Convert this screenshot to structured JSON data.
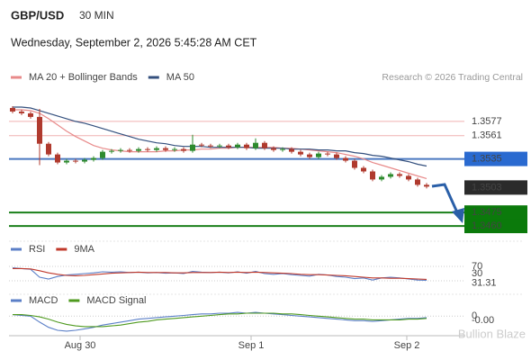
{
  "chart_data": [
    {
      "type": "candlestick",
      "title": "GBP/USD",
      "subtitle": "30 MIN",
      "date": "Wednesday, September 2, 2026 5:45:28 AM CET",
      "source": "Research © 2026 Trading Central",
      "watermark": "Bullion Blaze",
      "up_color": "#2e8b2e",
      "down_color": "#b03a2e",
      "xlim": [
        -0.2,
        46.6
      ],
      "ylim": [
        1.3449,
        1.3597
      ],
      "xticks": [
        {
          "value": 7.5,
          "label": "Aug 30"
        },
        {
          "value": 26.5,
          "label": "Sep 1"
        },
        {
          "value": 43.8,
          "label": "Sep 2"
        }
      ],
      "open": [
        1.3592,
        1.3588,
        1.3586,
        1.3582,
        1.3552,
        1.354,
        1.3531,
        1.3533,
        1.3532,
        1.3534,
        1.3536,
        1.3543,
        1.3544,
        1.3545,
        1.3544,
        1.3546,
        1.3545,
        1.3547,
        1.3545,
        1.3546,
        1.3544,
        1.3551,
        1.355,
        1.3549,
        1.355,
        1.3548,
        1.3551,
        1.3547,
        1.3553,
        1.3547,
        1.3545,
        1.3546,
        1.3543,
        1.354,
        1.3537,
        1.3541,
        1.354,
        1.3536,
        1.3533,
        1.3525,
        1.3521,
        1.3512,
        1.3515,
        1.3518,
        1.3516,
        1.3512,
        1.3506
      ],
      "high": [
        1.3594,
        1.359,
        1.3588,
        1.3591,
        1.3554,
        1.3542,
        1.3535,
        1.3535,
        1.3536,
        1.3538,
        1.3545,
        1.3546,
        1.3547,
        1.3547,
        1.3548,
        1.3548,
        1.3549,
        1.3549,
        1.3548,
        1.3548,
        1.3562,
        1.3553,
        1.3552,
        1.3552,
        1.3552,
        1.3553,
        1.3553,
        1.3558,
        1.3555,
        1.3549,
        1.3548,
        1.3548,
        1.3545,
        1.3542,
        1.3543,
        1.3543,
        1.3542,
        1.3538,
        1.3535,
        1.3527,
        1.3523,
        1.3517,
        1.352,
        1.352,
        1.3518,
        1.3514,
        1.3508
      ],
      "low": [
        1.3586,
        1.3584,
        1.358,
        1.3528,
        1.3538,
        1.3529,
        1.3529,
        1.353,
        1.353,
        1.3532,
        1.3534,
        1.3541,
        1.3542,
        1.3542,
        1.3542,
        1.3543,
        1.3543,
        1.3543,
        1.3543,
        1.3542,
        1.3542,
        1.3548,
        1.3547,
        1.3547,
        1.3546,
        1.3546,
        1.3545,
        1.3545,
        1.3545,
        1.3543,
        1.3543,
        1.3541,
        1.3538,
        1.3535,
        1.3535,
        1.3538,
        1.3534,
        1.3531,
        1.3523,
        1.3519,
        1.351,
        1.351,
        1.3513,
        1.3514,
        1.351,
        1.3504,
        1.3502
      ],
      "close": [
        1.3588,
        1.3586,
        1.3582,
        1.3552,
        1.354,
        1.3531,
        1.3533,
        1.3532,
        1.3534,
        1.3536,
        1.3543,
        1.3544,
        1.3545,
        1.3544,
        1.3546,
        1.3545,
        1.3547,
        1.3545,
        1.3546,
        1.3544,
        1.3551,
        1.355,
        1.3549,
        1.355,
        1.3548,
        1.3551,
        1.3547,
        1.3553,
        1.3547,
        1.3545,
        1.3546,
        1.3543,
        1.354,
        1.3537,
        1.3541,
        1.354,
        1.3536,
        1.3533,
        1.3525,
        1.3521,
        1.3512,
        1.3515,
        1.3518,
        1.3516,
        1.3512,
        1.3506,
        1.3504
      ],
      "lines": [
        {
          "name": "MA 20 + Bollinger Bands",
          "color": "#e88a8a",
          "values": [
            1.359,
            1.359,
            1.3589,
            1.3586,
            1.358,
            1.3573,
            1.3566,
            1.356,
            1.3555,
            1.355,
            1.3547,
            1.3545,
            1.3544,
            1.3543,
            1.3543,
            1.3543,
            1.3543,
            1.3544,
            1.3544,
            1.3545,
            1.3545,
            1.3546,
            1.3546,
            1.3547,
            1.3547,
            1.3548,
            1.3548,
            1.3548,
            1.3548,
            1.3548,
            1.3547,
            1.3547,
            1.3546,
            1.3545,
            1.3544,
            1.3543,
            1.3542,
            1.354,
            1.3538,
            1.3535,
            1.3531,
            1.3528,
            1.3525,
            1.3522,
            1.3519,
            1.3516,
            1.3513
          ]
        },
        {
          "name": "MA 50",
          "color": "#34507e",
          "values": [
            1.3593,
            1.3593,
            1.3592,
            1.3589,
            1.3586,
            1.3583,
            1.358,
            1.3577,
            1.3575,
            1.3572,
            1.3569,
            1.3566,
            1.3563,
            1.356,
            1.3557,
            1.3555,
            1.3553,
            1.3552,
            1.355,
            1.3549,
            1.3549,
            1.3549,
            1.3548,
            1.3548,
            1.3548,
            1.3548,
            1.3548,
            1.3547,
            1.3547,
            1.3547,
            1.3547,
            1.3546,
            1.3546,
            1.3546,
            1.3545,
            1.3545,
            1.3544,
            1.3544,
            1.3542,
            1.3541,
            1.3539,
            1.3538,
            1.3536,
            1.3534,
            1.3532,
            1.3529,
            1.3527
          ]
        }
      ],
      "levels": [
        {
          "value": 1.3577,
          "label": "1.3577",
          "color": "#f0b0b0",
          "text_color": "#d9302c"
        },
        {
          "value": 1.3561,
          "label": "1.3561",
          "color": "#f0b0b0",
          "text_color": "#d9302c"
        },
        {
          "value": 1.3535,
          "label": "1.3535",
          "color": "#4a78c0",
          "box_color": "#2a6ad0",
          "text_color": "#ffffff"
        },
        {
          "value": 1.3503,
          "label": "1.3503",
          "box_color": "#2b2b2b",
          "text_color": "#ffffff"
        },
        {
          "value": 1.3475,
          "label": "1.3475",
          "color": "#1a7f1a",
          "box_color": "#0b7a0b",
          "text_color": "#ffffff"
        },
        {
          "value": 1.346,
          "label": "1.3460",
          "color": "#1a7f1a",
          "box_color": "#0b7a0b",
          "text_color": "#ffffff"
        }
      ]
    },
    {
      "type": "line",
      "xlim": [
        -0.2,
        46.6
      ],
      "ylim": [
        0,
        100
      ],
      "yticks": [
        70,
        30
      ],
      "series": [
        {
          "name": "RSI",
          "color": "#5b7fc7",
          "values": [
            66,
            64,
            62,
            40,
            35,
            42,
            46,
            48,
            50,
            52,
            55,
            54,
            55,
            53,
            54,
            52,
            53,
            51,
            52,
            50,
            56,
            54,
            53,
            54,
            52,
            55,
            51,
            56,
            50,
            48,
            50,
            47,
            45,
            43,
            48,
            46,
            42,
            40,
            36,
            38,
            32,
            38,
            40,
            38,
            35,
            32,
            31.31
          ]
        },
        {
          "name": "9MA",
          "color": "#c0392b",
          "values": [
            64,
            64,
            63,
            58,
            52,
            48,
            45,
            44,
            45,
            47,
            49,
            51,
            52,
            53,
            54,
            53,
            53,
            53,
            52,
            52,
            53,
            53,
            53,
            54,
            53,
            54,
            53,
            54,
            53,
            52,
            51,
            50,
            48,
            47,
            47,
            46,
            45,
            44,
            42,
            40,
            38,
            38,
            37,
            37,
            36,
            35,
            34
          ]
        }
      ]
    },
    {
      "type": "line",
      "xlim": [
        -0.2,
        46.6
      ],
      "ylim": [
        -0.0025,
        0.001
      ],
      "yticks": [
        0
      ],
      "series": [
        {
          "name": "MACD",
          "color": "#5b7fc7",
          "values": [
            0.0002,
            0.0001,
            0,
            -0.0008,
            -0.0015,
            -0.0019,
            -0.002,
            -0.0019,
            -0.0017,
            -0.0015,
            -0.0012,
            -0.001,
            -0.0008,
            -0.0006,
            -0.0004,
            -0.0003,
            -0.0002,
            -0.0001,
            0,
            0.0001,
            0.0002,
            0.0003,
            0.0003,
            0.0004,
            0.0004,
            0.0005,
            0.0004,
            0.0005,
            0.0004,
            0.0003,
            0.0002,
            0.0001,
            0,
            -0.0001,
            -0.0002,
            -0.0003,
            -0.0004,
            -0.0005,
            -0.0006,
            -0.0006,
            -0.0007,
            -0.0006,
            -0.0005,
            -0.0004,
            -0.0003,
            -0.0003,
            -0.0002
          ],
          "value_labels": [
            null,
            null,
            null,
            null,
            null,
            null,
            null,
            null,
            null,
            null,
            null,
            null,
            null,
            null,
            null,
            null,
            null,
            null,
            null,
            null,
            null,
            null,
            null,
            null,
            null,
            null,
            null,
            null,
            null,
            null,
            null,
            null,
            null,
            null,
            null,
            null,
            null,
            null,
            null,
            null,
            null,
            null,
            null,
            null,
            null,
            null,
            "-0.00"
          ]
        },
        {
          "name": "MACD Signal",
          "color": "#4f9a1f",
          "values": [
            0.0002,
            0.0002,
            0.0001,
            -0.0001,
            -0.0004,
            -0.0008,
            -0.0011,
            -0.0013,
            -0.0014,
            -0.0014,
            -0.0014,
            -0.0013,
            -0.0012,
            -0.001,
            -0.0008,
            -0.0007,
            -0.0005,
            -0.0004,
            -0.0003,
            -0.0002,
            -0.0001,
            0,
            0.0001,
            0.0002,
            0.0003,
            0.0003,
            0.0004,
            0.0004,
            0.0004,
            0.0004,
            0.0003,
            0.0003,
            0.0002,
            0.0001,
            0,
            -0.0001,
            -0.0002,
            -0.0003,
            -0.0004,
            -0.0004,
            -0.0005,
            -0.0005,
            -0.0005,
            -0.0005,
            -0.0004,
            -0.0004,
            -0.0003
          ]
        }
      ]
    }
  ]
}
